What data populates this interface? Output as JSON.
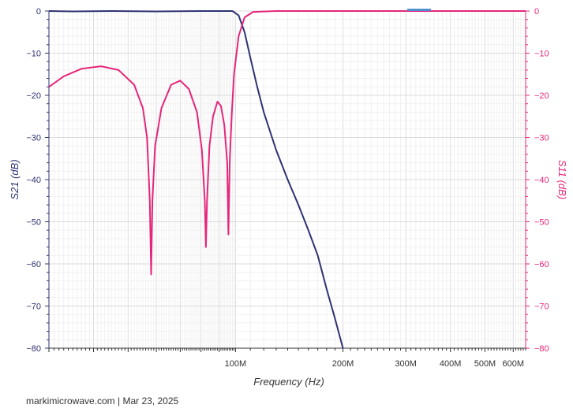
{
  "chart_data": {
    "type": "line",
    "xlabel": "Frequency (Hz)",
    "ylabel_left": "S21 (dB)",
    "ylabel_right": "S11 (dB)",
    "x_scale": "log",
    "xlim": [
      30000000,
      650000000
    ],
    "ylim": [
      -80,
      0
    ],
    "grid": true,
    "x_tick_labels": [
      {
        "value": 100000000,
        "label": "100M"
      },
      {
        "value": 200000000,
        "label": "200M"
      },
      {
        "value": 300000000,
        "label": "300M"
      },
      {
        "value": 400000000,
        "label": "400M"
      },
      {
        "value": 500000000,
        "label": "500M"
      },
      {
        "value": 600000000,
        "label": "600M"
      }
    ],
    "y_ticks": [
      0,
      -10,
      -20,
      -30,
      -40,
      -50,
      -60,
      -70,
      -80
    ],
    "series": [
      {
        "key": "s21",
        "axis": "left",
        "color": "#2e3271",
        "points": [
          [
            30000000,
            0
          ],
          [
            35000000,
            -0.1
          ],
          [
            45000000,
            0
          ],
          [
            60000000,
            -0.1
          ],
          [
            80000000,
            0
          ],
          [
            90000000,
            0
          ],
          [
            98000000,
            0
          ],
          [
            102000000,
            -1
          ],
          [
            106000000,
            -5
          ],
          [
            110000000,
            -11
          ],
          [
            115000000,
            -18
          ],
          [
            120000000,
            -24
          ],
          [
            130000000,
            -33
          ],
          [
            140000000,
            -40
          ],
          [
            150000000,
            -46
          ],
          [
            160000000,
            -52
          ],
          [
            170000000,
            -58
          ],
          [
            180000000,
            -66
          ],
          [
            190000000,
            -73
          ],
          [
            200000000,
            -80
          ]
        ]
      },
      {
        "key": "s11",
        "axis": "right",
        "color": "#e5267a",
        "points": [
          [
            30000000,
            -18
          ],
          [
            33000000,
            -15.5
          ],
          [
            37000000,
            -13.7
          ],
          [
            42000000,
            -13.1
          ],
          [
            47000000,
            -14
          ],
          [
            52000000,
            -17.5
          ],
          [
            55000000,
            -23
          ],
          [
            56500000,
            -30
          ],
          [
            57500000,
            -45
          ],
          [
            58000000,
            -62.5
          ],
          [
            58500000,
            -45
          ],
          [
            59500000,
            -32
          ],
          [
            62000000,
            -23
          ],
          [
            66000000,
            -17.5
          ],
          [
            70000000,
            -16.5
          ],
          [
            74000000,
            -18.5
          ],
          [
            78000000,
            -24
          ],
          [
            80500000,
            -33
          ],
          [
            82000000,
            -45
          ],
          [
            82600000,
            -56
          ],
          [
            83200000,
            -45
          ],
          [
            84500000,
            -32
          ],
          [
            86500000,
            -25
          ],
          [
            89000000,
            -21.5
          ],
          [
            91000000,
            -22.5
          ],
          [
            93000000,
            -27
          ],
          [
            94800000,
            -36
          ],
          [
            95500000,
            -53
          ],
          [
            96300000,
            -36
          ],
          [
            97500000,
            -25
          ],
          [
            99000000,
            -15
          ],
          [
            102000000,
            -6
          ],
          [
            106000000,
            -1.5
          ],
          [
            112000000,
            -0.2
          ],
          [
            130000000,
            0
          ],
          [
            650000000,
            0
          ]
        ]
      }
    ]
  },
  "footer": {
    "text": "markimicrowave.com | Mar 23, 2025"
  }
}
